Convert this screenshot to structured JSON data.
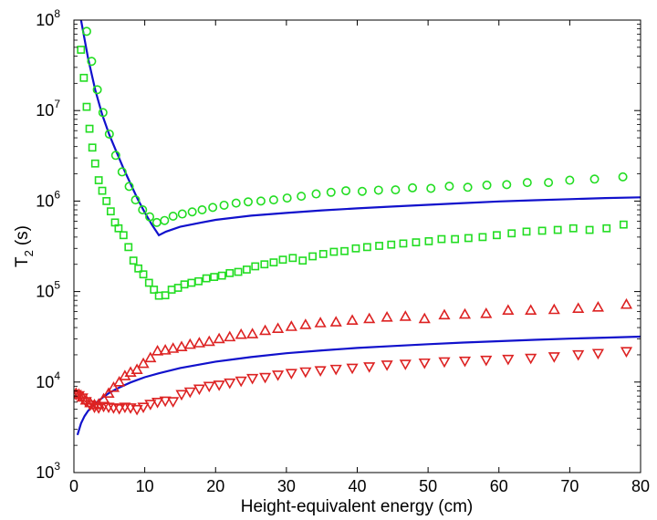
{
  "chart_data": {
    "type": "scatter",
    "title": "",
    "xlabel": "Height-equivalent energy (cm)",
    "ylabel": {
      "main": "T",
      "subscript": "2",
      "unit": "(s)"
    },
    "xlim": [
      0,
      80
    ],
    "ylim": [
      1000,
      100000000
    ],
    "yscale": "log",
    "x_ticks": [
      "0",
      "10",
      "20",
      "30",
      "40",
      "50",
      "60",
      "70",
      "80"
    ],
    "y_ticks": [
      {
        "base": "10",
        "exp": "3"
      },
      {
        "base": "10",
        "exp": "4"
      },
      {
        "base": "10",
        "exp": "5"
      },
      {
        "base": "10",
        "exp": "6"
      },
      {
        "base": "10",
        "exp": "7"
      },
      {
        "base": "10",
        "exp": "8"
      }
    ],
    "grid": false,
    "colors": {
      "green": "#22dd22",
      "red": "#dd2222",
      "blue": "#1111cc"
    },
    "series": [
      {
        "name": "green-circles",
        "marker": "circle",
        "color": "#22dd22",
        "points": [
          [
            1.8,
            75000000
          ],
          [
            2.5,
            35000000
          ],
          [
            3.3,
            17000000
          ],
          [
            4.1,
            9500000
          ],
          [
            5.0,
            5500000
          ],
          [
            5.9,
            3200000
          ],
          [
            6.8,
            2100000
          ],
          [
            7.8,
            1450000
          ],
          [
            8.7,
            1030000
          ],
          [
            9.7,
            800000
          ],
          [
            10.7,
            670000
          ],
          [
            11.7,
            580000
          ],
          [
            12.8,
            610000
          ],
          [
            14.0,
            680000
          ],
          [
            15.3,
            720000
          ],
          [
            16.7,
            760000
          ],
          [
            18.1,
            800000
          ],
          [
            19.6,
            850000
          ],
          [
            21.2,
            900000
          ],
          [
            22.9,
            950000
          ],
          [
            24.6,
            980000
          ],
          [
            26.4,
            1000000
          ],
          [
            28.2,
            1030000
          ],
          [
            30.1,
            1080000
          ],
          [
            32.1,
            1130000
          ],
          [
            34.2,
            1200000
          ],
          [
            36.3,
            1250000
          ],
          [
            38.4,
            1300000
          ],
          [
            40.7,
            1280000
          ],
          [
            43.0,
            1320000
          ],
          [
            45.4,
            1330000
          ],
          [
            47.8,
            1400000
          ],
          [
            50.4,
            1380000
          ],
          [
            53.0,
            1460000
          ],
          [
            55.6,
            1420000
          ],
          [
            58.3,
            1500000
          ],
          [
            61.1,
            1520000
          ],
          [
            64.0,
            1600000
          ],
          [
            67.0,
            1600000
          ],
          [
            70.0,
            1700000
          ],
          [
            73.5,
            1750000
          ],
          [
            77.5,
            1850000
          ]
        ]
      },
      {
        "name": "green-squares",
        "marker": "square",
        "color": "#22dd22",
        "points": [
          [
            1.0,
            47000000
          ],
          [
            1.4,
            23000000
          ],
          [
            1.8,
            11000000
          ],
          [
            2.2,
            6300000
          ],
          [
            2.6,
            3900000
          ],
          [
            3.0,
            2600000
          ],
          [
            3.5,
            1700000
          ],
          [
            4.0,
            1300000
          ],
          [
            4.6,
            1000000
          ],
          [
            5.2,
            770000
          ],
          [
            5.8,
            580000
          ],
          [
            6.3,
            500000
          ],
          [
            7.0,
            420000
          ],
          [
            7.7,
            310000
          ],
          [
            8.4,
            220000
          ],
          [
            9.1,
            180000
          ],
          [
            9.8,
            155000
          ],
          [
            10.6,
            125000
          ],
          [
            11.3,
            105000
          ],
          [
            12.0,
            90000
          ],
          [
            12.9,
            91000
          ],
          [
            13.8,
            105000
          ],
          [
            14.7,
            110000
          ],
          [
            15.6,
            120000
          ],
          [
            16.6,
            125000
          ],
          [
            17.6,
            130000
          ],
          [
            18.7,
            140000
          ],
          [
            19.8,
            145000
          ],
          [
            20.9,
            150000
          ],
          [
            22.0,
            160000
          ],
          [
            23.2,
            165000
          ],
          [
            24.4,
            175000
          ],
          [
            25.6,
            190000
          ],
          [
            26.9,
            200000
          ],
          [
            28.2,
            210000
          ],
          [
            29.5,
            225000
          ],
          [
            30.9,
            235000
          ],
          [
            32.3,
            220000
          ],
          [
            33.7,
            245000
          ],
          [
            35.2,
            260000
          ],
          [
            36.7,
            275000
          ],
          [
            38.2,
            280000
          ],
          [
            39.8,
            300000
          ],
          [
            41.4,
            310000
          ],
          [
            43.1,
            320000
          ],
          [
            44.8,
            330000
          ],
          [
            46.5,
            340000
          ],
          [
            48.3,
            350000
          ],
          [
            50.1,
            360000
          ],
          [
            51.9,
            380000
          ],
          [
            53.8,
            380000
          ],
          [
            55.7,
            390000
          ],
          [
            57.7,
            400000
          ],
          [
            59.7,
            420000
          ],
          [
            61.8,
            440000
          ],
          [
            63.9,
            460000
          ],
          [
            66.1,
            470000
          ],
          [
            68.3,
            480000
          ],
          [
            70.5,
            500000
          ],
          [
            72.8,
            480000
          ],
          [
            75.2,
            500000
          ],
          [
            77.6,
            550000
          ]
        ]
      },
      {
        "name": "red-triangles-up",
        "marker": "triangle-up",
        "color": "#dd2222",
        "points": [
          [
            0.3,
            7500
          ],
          [
            0.7,
            7300
          ],
          [
            1.2,
            6800
          ],
          [
            1.7,
            6300
          ],
          [
            2.3,
            5900
          ],
          [
            2.9,
            5600
          ],
          [
            3.5,
            5700
          ],
          [
            4.2,
            6500
          ],
          [
            4.9,
            7500
          ],
          [
            5.6,
            8700
          ],
          [
            6.4,
            10000
          ],
          [
            7.2,
            11700
          ],
          [
            8.0,
            12800
          ],
          [
            8.9,
            13700
          ],
          [
            9.8,
            16000
          ],
          [
            10.8,
            18500
          ],
          [
            11.8,
            22000
          ],
          [
            12.9,
            22500
          ],
          [
            14.0,
            23500
          ],
          [
            15.2,
            24500
          ],
          [
            16.4,
            26000
          ],
          [
            17.7,
            27000
          ],
          [
            19.1,
            28000
          ],
          [
            20.5,
            30000
          ],
          [
            22.0,
            31500
          ],
          [
            23.6,
            33500
          ],
          [
            25.2,
            34000
          ],
          [
            27.0,
            37000
          ],
          [
            28.8,
            39000
          ],
          [
            30.7,
            41000
          ],
          [
            32.7,
            43000
          ],
          [
            34.8,
            45000
          ],
          [
            37.0,
            46000
          ],
          [
            39.3,
            48000
          ],
          [
            41.7,
            50000
          ],
          [
            44.2,
            52000
          ],
          [
            46.8,
            53000
          ],
          [
            49.5,
            50000
          ],
          [
            52.3,
            55000
          ],
          [
            55.2,
            56000
          ],
          [
            58.2,
            57000
          ],
          [
            61.3,
            62000
          ],
          [
            64.5,
            62000
          ],
          [
            67.8,
            63000
          ],
          [
            71.2,
            65000
          ],
          [
            74.0,
            67000
          ],
          [
            78.0,
            72000
          ]
        ]
      },
      {
        "name": "red-triangles-down",
        "marker": "triangle-down",
        "color": "#dd2222",
        "points": [
          [
            0.3,
            7300
          ],
          [
            0.7,
            7100
          ],
          [
            1.2,
            6700
          ],
          [
            1.7,
            6100
          ],
          [
            2.3,
            5600
          ],
          [
            2.9,
            5300
          ],
          [
            3.5,
            5200
          ],
          [
            4.2,
            5400
          ],
          [
            4.9,
            5300
          ],
          [
            5.6,
            5200
          ],
          [
            6.4,
            5100
          ],
          [
            7.2,
            5300
          ],
          [
            8.0,
            5200
          ],
          [
            8.9,
            5000
          ],
          [
            9.8,
            5300
          ],
          [
            10.8,
            5700
          ],
          [
            11.8,
            6000
          ],
          [
            12.9,
            6200
          ],
          [
            14.0,
            6100
          ],
          [
            15.2,
            7300
          ],
          [
            16.4,
            7800
          ],
          [
            17.7,
            8400
          ],
          [
            19.1,
            9000
          ],
          [
            20.5,
            9300
          ],
          [
            22.0,
            9800
          ],
          [
            23.6,
            10300
          ],
          [
            25.2,
            11000
          ],
          [
            27.0,
            11300
          ],
          [
            28.8,
            12000
          ],
          [
            30.7,
            12500
          ],
          [
            32.7,
            13000
          ],
          [
            34.8,
            13400
          ],
          [
            37.0,
            13900
          ],
          [
            39.3,
            14300
          ],
          [
            41.7,
            14800
          ],
          [
            44.2,
            15500
          ],
          [
            46.8,
            15800
          ],
          [
            49.5,
            16300
          ],
          [
            52.3,
            16800
          ],
          [
            55.2,
            17100
          ],
          [
            58.2,
            17500
          ],
          [
            61.3,
            17900
          ],
          [
            64.5,
            18400
          ],
          [
            67.8,
            19100
          ],
          [
            71.2,
            20100
          ],
          [
            74.0,
            20800
          ],
          [
            78.0,
            21800
          ]
        ]
      }
    ],
    "lines": [
      {
        "name": "upper-blue-curve",
        "color": "#1111cc",
        "points": [
          [
            1.0,
            100000000
          ],
          [
            2.0,
            38000000
          ],
          [
            3.0,
            17000000
          ],
          [
            4.0,
            9000000
          ],
          [
            5.0,
            5400000
          ],
          [
            6.0,
            3500000
          ],
          [
            7.0,
            2300000
          ],
          [
            8.0,
            1550000
          ],
          [
            9.0,
            1050000
          ],
          [
            10.0,
            750000
          ],
          [
            11.0,
            550000
          ],
          [
            12.0,
            420000
          ],
          [
            13.0,
            460000
          ],
          [
            15.0,
            520000
          ],
          [
            18.0,
            580000
          ],
          [
            20.0,
            620000
          ],
          [
            25.0,
            690000
          ],
          [
            30.0,
            740000
          ],
          [
            35.0,
            790000
          ],
          [
            40.0,
            830000
          ],
          [
            45.0,
            870000
          ],
          [
            50.0,
            910000
          ],
          [
            55.0,
            950000
          ],
          [
            60.0,
            990000
          ],
          [
            65.0,
            1020000
          ],
          [
            70.0,
            1050000
          ],
          [
            75.0,
            1080000
          ],
          [
            80.0,
            1100000
          ]
        ]
      },
      {
        "name": "lower-blue-curve",
        "color": "#1111cc",
        "points": [
          [
            0.5,
            2600
          ],
          [
            1.0,
            3500
          ],
          [
            1.5,
            4200
          ],
          [
            2.0,
            4800
          ],
          [
            3.0,
            5800
          ],
          [
            4.0,
            6700
          ],
          [
            5.0,
            7600
          ],
          [
            6.0,
            8400
          ],
          [
            8.0,
            9900
          ],
          [
            10.0,
            11300
          ],
          [
            12.0,
            12500
          ],
          [
            15.0,
            14300
          ],
          [
            20.0,
            16800
          ],
          [
            25.0,
            18900
          ],
          [
            30.0,
            20800
          ],
          [
            35.0,
            22400
          ],
          [
            40.0,
            23800
          ],
          [
            45.0,
            25000
          ],
          [
            50.0,
            26200
          ],
          [
            55.0,
            27300
          ],
          [
            60.0,
            28300
          ],
          [
            65.0,
            29300
          ],
          [
            70.0,
            30200
          ],
          [
            75.0,
            31000
          ],
          [
            80.0,
            31800
          ]
        ]
      }
    ]
  }
}
